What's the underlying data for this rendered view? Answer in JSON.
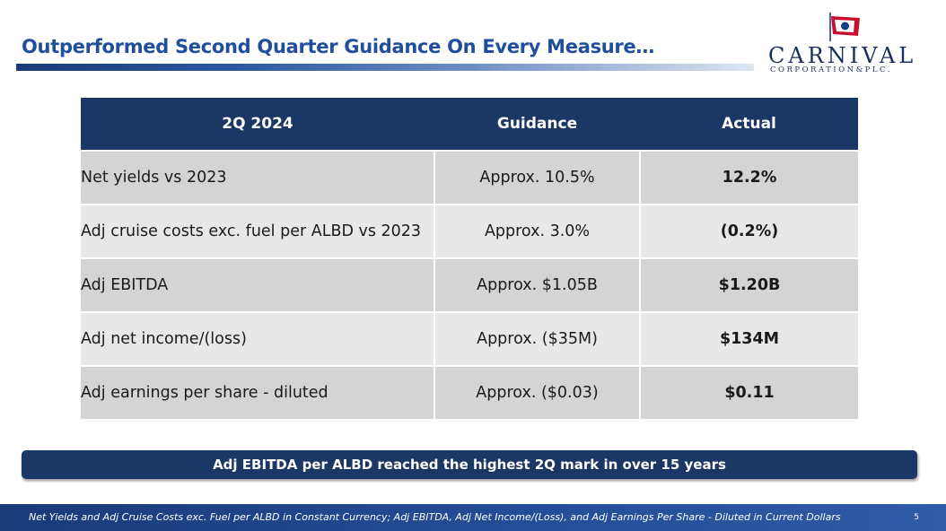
{
  "header": {
    "title": "Outperformed Second Quarter Guidance On Every Measure…"
  },
  "logo": {
    "wordmark": "CARNIVAL",
    "subline": "CORPORATION&PLC."
  },
  "table": {
    "columns": [
      "2Q 2024",
      "Guidance",
      "Actual"
    ],
    "rows": [
      {
        "metric": "Net yields vs 2023",
        "guidance": "Approx. 10.5%",
        "actual": "12.2%"
      },
      {
        "metric": "Adj cruise costs exc. fuel per ALBD vs 2023",
        "guidance": "Approx. 3.0%",
        "actual": "(0.2%)"
      },
      {
        "metric": "Adj EBITDA",
        "guidance": "Approx. $1.05B",
        "actual": "$1.20B"
      },
      {
        "metric": "Adj net income/(loss)",
        "guidance": "Approx. ($35M)",
        "actual": "$134M"
      },
      {
        "metric": "Adj earnings per share - diluted",
        "guidance": "Approx. ($0.03)",
        "actual": "$0.11"
      }
    ]
  },
  "banner": {
    "text": "Adj EBITDA per ALBD reached the highest 2Q mark in over 15 years"
  },
  "footer": {
    "note": "Net Yields and Adj Cruise Costs exc. Fuel per ALBD in Constant Currency; Adj EBITDA, Adj Net Income/(Loss), and Adj Earnings Per Share - Diluted in Current Dollars",
    "page_number": "5"
  },
  "colors": {
    "title_blue": "#1f4e9c",
    "header_navy": "#1b3766",
    "actual_green": "#1fa84f",
    "row_dark": "#d4d4d4",
    "row_light": "#e8e8e8"
  }
}
